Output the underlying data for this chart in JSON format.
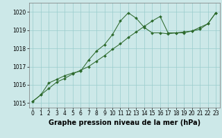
{
  "series1_x": [
    0,
    1,
    2,
    3,
    4,
    5,
    6,
    7,
    8,
    9,
    10,
    11,
    12,
    13,
    14,
    15,
    16,
    17,
    18,
    19,
    20,
    21,
    22,
    23
  ],
  "series1_y": [
    1015.1,
    1015.45,
    1015.8,
    1016.15,
    1016.35,
    1016.6,
    1016.8,
    1017.0,
    1017.3,
    1017.6,
    1017.95,
    1018.25,
    1018.6,
    1018.9,
    1019.2,
    1019.5,
    1019.75,
    1018.85,
    1018.85,
    1018.9,
    1018.95,
    1019.05,
    1019.35,
    1019.95
  ],
  "series2_x": [
    0,
    1,
    2,
    3,
    4,
    5,
    6,
    7,
    8,
    9,
    10,
    11,
    12,
    13,
    14,
    15,
    16,
    17,
    18,
    19,
    20,
    21,
    22,
    23
  ],
  "series2_y": [
    1015.1,
    1015.45,
    1016.1,
    1016.3,
    1016.5,
    1016.65,
    1016.75,
    1017.35,
    1017.85,
    1018.2,
    1018.75,
    1019.5,
    1019.95,
    1019.65,
    1019.15,
    1018.85,
    1018.85,
    1018.8,
    1018.85,
    1018.85,
    1018.95,
    1019.15,
    1019.35,
    1019.95
  ],
  "line_color": "#2d6a2d",
  "markersize": 2.0,
  "bg_color": "#cce8e8",
  "grid_color": "#99cccc",
  "xlabel": "Graphe pression niveau de la mer (hPa)",
  "xlabel_fontsize": 7,
  "ylim": [
    1014.75,
    1020.5
  ],
  "yticks": [
    1015,
    1016,
    1017,
    1018,
    1019,
    1020
  ],
  "xticks": [
    0,
    1,
    2,
    3,
    4,
    5,
    6,
    7,
    8,
    9,
    10,
    11,
    12,
    13,
    14,
    15,
    16,
    17,
    18,
    19,
    20,
    21,
    22,
    23
  ],
  "tick_fontsize": 5.5,
  "linewidth": 0.75
}
